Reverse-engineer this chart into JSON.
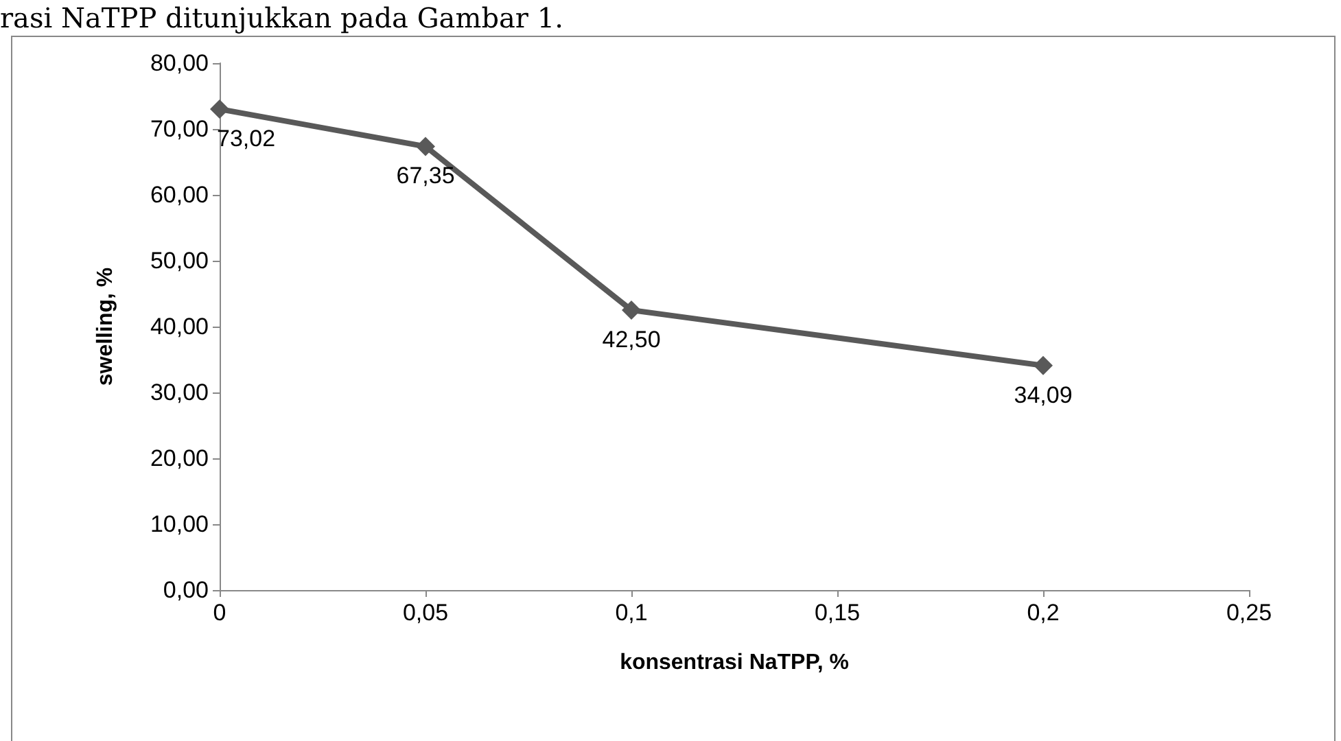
{
  "chart_data": {
    "type": "line",
    "xlabel": "konsentrasi NaTPP, %",
    "ylabel": "swelling, %",
    "annotations": [
      "rasi NaTPP ditunjukkan pada Gambar 1."
    ],
    "x": [
      0,
      0.05,
      0.1,
      0.2
    ],
    "series": [
      {
        "color": "#595959",
        "values": [
          73.02,
          67.35,
          42.5,
          34.09
        ],
        "value_labels": [
          "73,02",
          "67,35",
          "42,50",
          "34,09"
        ]
      }
    ],
    "xlim": [
      0,
      0.25
    ],
    "xticks": [
      {
        "value": 0,
        "label": "0"
      },
      {
        "value": 0.05,
        "label": "0,05"
      },
      {
        "value": 0.1,
        "label": "0,1"
      },
      {
        "value": 0.15,
        "label": "0,15"
      },
      {
        "value": 0.2,
        "label": "0,2"
      },
      {
        "value": 0.25,
        "label": "0,25"
      }
    ],
    "ylim": [
      0,
      80
    ],
    "yticks": [
      {
        "value": 0,
        "label": "0,00"
      },
      {
        "value": 10,
        "label": "10,00"
      },
      {
        "value": 20,
        "label": "20,00"
      },
      {
        "value": 30,
        "label": "30,00"
      },
      {
        "value": 40,
        "label": "40,00"
      },
      {
        "value": 50,
        "label": "50,00"
      },
      {
        "value": 60,
        "label": "60,00"
      },
      {
        "value": 70,
        "label": "70,00"
      },
      {
        "value": 80,
        "label": "80,00"
      }
    ],
    "grid": false,
    "marker": "diamond",
    "line_style": "solid"
  }
}
